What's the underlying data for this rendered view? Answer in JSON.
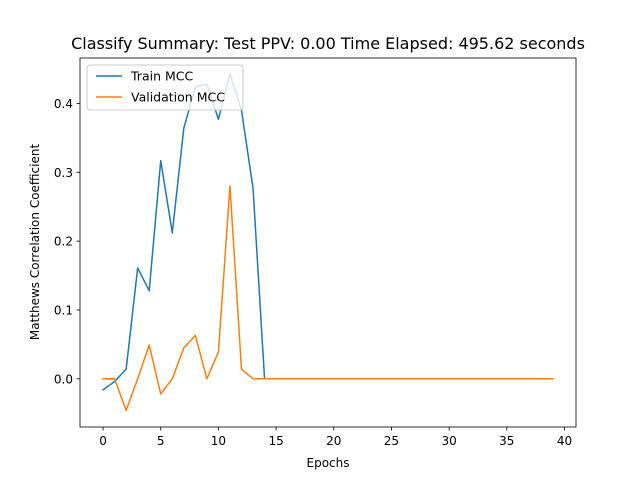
{
  "chart_data": {
    "type": "line",
    "title": "Classify Summary: Test PPV: 0.00 Time Elapsed: 495.62 seconds",
    "xlabel": "Epochs",
    "ylabel": "Matthews Correlation Coefficient",
    "xlim": [
      -2,
      41
    ],
    "ylim": [
      -0.07,
      0.466
    ],
    "xticks": [
      0,
      5,
      10,
      15,
      20,
      25,
      30,
      35,
      40
    ],
    "yticks": [
      0.0,
      0.1,
      0.2,
      0.3,
      0.4
    ],
    "xtick_labels": [
      "0",
      "5",
      "10",
      "15",
      "20",
      "25",
      "30",
      "35",
      "40"
    ],
    "ytick_labels": [
      "0.0",
      "0.1",
      "0.2",
      "0.3",
      "0.4"
    ],
    "grid": false,
    "legend_position": "upper-left",
    "x": [
      0,
      1,
      2,
      3,
      4,
      5,
      6,
      7,
      8,
      9,
      10,
      11,
      12,
      13,
      14,
      15,
      16,
      17,
      18,
      19,
      20,
      21,
      22,
      23,
      24,
      25,
      26,
      27,
      28,
      29,
      30,
      31,
      32,
      33,
      34,
      35,
      36,
      37,
      38,
      39
    ],
    "series": [
      {
        "name": "Train MCC",
        "color": "#1f77b4",
        "values": [
          -0.016,
          -0.004,
          0.014,
          0.161,
          0.128,
          0.317,
          0.212,
          0.364,
          0.424,
          0.428,
          0.377,
          0.443,
          0.39,
          0.277,
          0.0,
          0.0,
          0.0,
          0.0,
          0.0,
          0.0,
          0.0,
          0.0,
          0.0,
          0.0,
          0.0,
          0.0,
          0.0,
          0.0,
          0.0,
          0.0,
          0.0,
          0.0,
          0.0,
          0.0,
          0.0,
          0.0,
          0.0,
          0.0,
          0.0,
          0.0
        ]
      },
      {
        "name": "Validation MCC",
        "color": "#ff7f0e",
        "values": [
          0.0,
          0.0,
          -0.046,
          0.0,
          0.049,
          -0.022,
          0.0,
          0.045,
          0.063,
          0.0,
          0.039,
          0.28,
          0.014,
          0.0,
          0.0,
          0.0,
          0.0,
          0.0,
          0.0,
          0.0,
          0.0,
          0.0,
          0.0,
          0.0,
          0.0,
          0.0,
          0.0,
          0.0,
          0.0,
          0.0,
          0.0,
          0.0,
          0.0,
          0.0,
          0.0,
          0.0,
          0.0,
          0.0,
          0.0,
          0.0
        ]
      }
    ]
  }
}
